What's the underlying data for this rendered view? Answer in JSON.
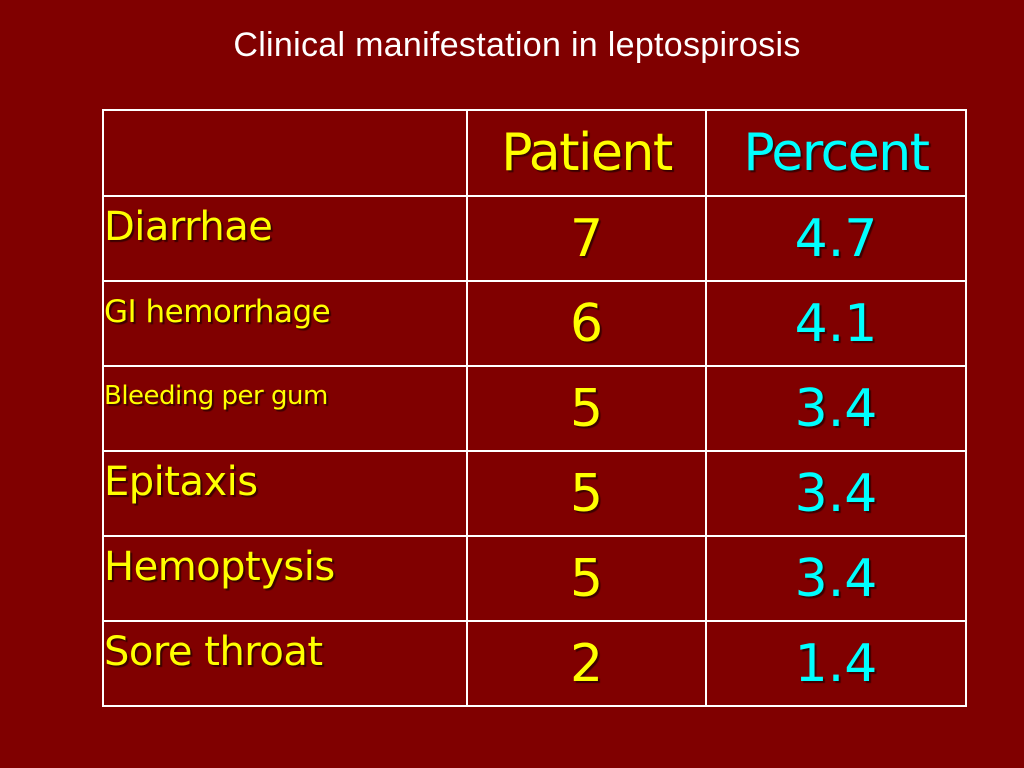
{
  "title": "Clinical manifestation in leptospirosis",
  "table": {
    "header": {
      "label": "",
      "patient": "Patient",
      "percent": "Percent"
    },
    "rows": [
      {
        "label": "Diarrhae",
        "patient": "7",
        "percent": "4.7"
      },
      {
        "label": "GI hemorrhage",
        "patient": "6",
        "percent": "4.1"
      },
      {
        "label": "Bleeding per gum",
        "patient": "5",
        "percent": "3.4"
      },
      {
        "label": "Epitaxis",
        "patient": "5",
        "percent": "3.4"
      },
      {
        "label": "Hemoptysis",
        "patient": "5",
        "percent": "3.4"
      },
      {
        "label": "Sore throat",
        "patient": "2",
        "percent": "1.4"
      }
    ]
  },
  "colors": {
    "background": "#800000",
    "title": "#ffffff",
    "patient": "#ffff00",
    "percent": "#00ffff",
    "labels": "#ffff00",
    "grid": "#ffffff"
  }
}
